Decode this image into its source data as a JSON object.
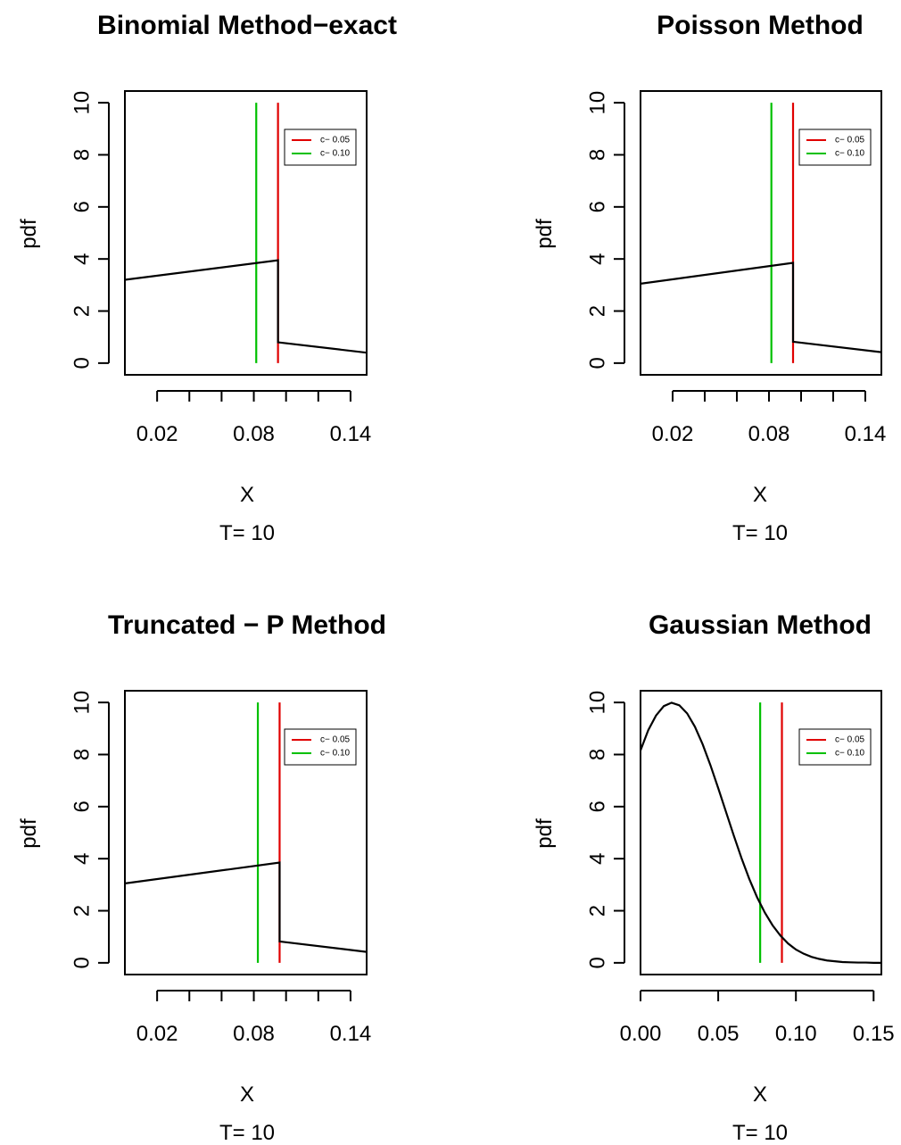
{
  "chart_data": [
    {
      "type": "line",
      "title": "Binomial Method−exact",
      "xlabel": "X",
      "sublabel": "T= 10",
      "ylabel": "pdf",
      "xlim": [
        0.0,
        0.15
      ],
      "ylim": [
        0,
        10
      ],
      "x_ticks": [
        0.02,
        0.04,
        0.06,
        0.08,
        0.1,
        0.12,
        0.14
      ],
      "x_tick_labels": [
        "0.02",
        "0.08",
        "0.14"
      ],
      "y_ticks": [
        0,
        2,
        4,
        6,
        8,
        10
      ],
      "y_tick_labels": [
        "0",
        "2",
        "4",
        "6",
        "8",
        "10"
      ],
      "series": [
        {
          "points": [
            [
              0.0,
              3.2
            ],
            [
              0.095,
              3.95
            ],
            [
              0.095,
              0.8
            ],
            [
              0.15,
              0.4
            ]
          ]
        }
      ],
      "vlines": [
        {
          "x": 0.0815,
          "color": "#00C000",
          "y_top": 10
        },
        {
          "x": 0.095,
          "color": "#E00000",
          "y_top": 10
        }
      ],
      "legend": {
        "position": "top-right",
        "entries": [
          {
            "label": "c− 0.05",
            "color": "#E00000"
          },
          {
            "label": "c− 0.10",
            "color": "#00C000"
          }
        ]
      }
    },
    {
      "type": "line",
      "title": "Poisson Method",
      "xlabel": "X",
      "sublabel": "T= 10",
      "ylabel": "pdf",
      "xlim": [
        0.0,
        0.15
      ],
      "ylim": [
        0,
        10
      ],
      "x_ticks": [
        0.02,
        0.04,
        0.06,
        0.08,
        0.1,
        0.12,
        0.14
      ],
      "x_tick_labels": [
        "0.02",
        "0.08",
        "0.14"
      ],
      "y_ticks": [
        0,
        2,
        4,
        6,
        8,
        10
      ],
      "y_tick_labels": [
        "0",
        "2",
        "4",
        "6",
        "8",
        "10"
      ],
      "series": [
        {
          "points": [
            [
              0.0,
              3.05
            ],
            [
              0.095,
              3.85
            ],
            [
              0.095,
              0.82
            ],
            [
              0.15,
              0.42
            ]
          ]
        }
      ],
      "vlines": [
        {
          "x": 0.0815,
          "color": "#00C000",
          "y_top": 10
        },
        {
          "x": 0.095,
          "color": "#E00000",
          "y_top": 10
        }
      ],
      "legend": {
        "position": "top-right",
        "entries": [
          {
            "label": "c− 0.05",
            "color": "#E00000"
          },
          {
            "label": "c− 0.10",
            "color": "#00C000"
          }
        ]
      }
    },
    {
      "type": "line",
      "title": "Truncated − P Method",
      "xlabel": "X",
      "sublabel": "T= 10",
      "ylabel": "pdf",
      "xlim": [
        0.0,
        0.15
      ],
      "ylim": [
        0,
        10
      ],
      "x_ticks": [
        0.02,
        0.04,
        0.06,
        0.08,
        0.1,
        0.12,
        0.14
      ],
      "x_tick_labels": [
        "0.02",
        "0.08",
        "0.14"
      ],
      "y_ticks": [
        0,
        2,
        4,
        6,
        8,
        10
      ],
      "y_tick_labels": [
        "0",
        "2",
        "4",
        "6",
        "8",
        "10"
      ],
      "series": [
        {
          "points": [
            [
              0.0,
              3.05
            ],
            [
              0.096,
              3.85
            ],
            [
              0.096,
              0.82
            ],
            [
              0.15,
              0.42
            ]
          ]
        }
      ],
      "vlines": [
        {
          "x": 0.0825,
          "color": "#00C000",
          "y_top": 10
        },
        {
          "x": 0.096,
          "color": "#E00000",
          "y_top": 10
        }
      ],
      "legend": {
        "position": "top-right",
        "entries": [
          {
            "label": "c− 0.05",
            "color": "#E00000"
          },
          {
            "label": "c− 0.10",
            "color": "#00C000"
          }
        ]
      }
    },
    {
      "type": "line",
      "title": "Gaussian Method",
      "xlabel": "X",
      "sublabel": "T= 10",
      "ylabel": "pdf",
      "xlim": [
        0.0,
        0.155
      ],
      "ylim": [
        0,
        10
      ],
      "x_ticks": [
        0.0,
        0.05,
        0.1,
        0.15
      ],
      "x_tick_labels": [
        "0.00",
        "0.05",
        "0.10",
        "0.15"
      ],
      "y_ticks": [
        0,
        2,
        4,
        6,
        8,
        10
      ],
      "y_tick_labels": [
        "0",
        "2",
        "4",
        "6",
        "8",
        "10"
      ],
      "series": [
        {
          "points": [
            [
              0.0,
              8.16
            ],
            [
              0.005,
              8.94
            ],
            [
              0.01,
              9.5
            ],
            [
              0.015,
              9.86
            ],
            [
              0.02,
              9.99
            ],
            [
              0.025,
              9.89
            ],
            [
              0.03,
              9.58
            ],
            [
              0.035,
              9.07
            ],
            [
              0.04,
              8.39
            ],
            [
              0.045,
              7.59
            ],
            [
              0.05,
              6.71
            ],
            [
              0.055,
              5.8
            ],
            [
              0.06,
              4.89
            ],
            [
              0.065,
              4.02
            ],
            [
              0.07,
              3.22
            ],
            [
              0.075,
              2.52
            ],
            [
              0.08,
              1.93
            ],
            [
              0.085,
              1.44
            ],
            [
              0.09,
              1.05
            ],
            [
              0.095,
              0.74
            ],
            [
              0.1,
              0.51
            ],
            [
              0.105,
              0.35
            ],
            [
              0.11,
              0.23
            ],
            [
              0.115,
              0.15
            ],
            [
              0.12,
              0.09
            ],
            [
              0.125,
              0.06
            ],
            [
              0.13,
              0.03
            ],
            [
              0.135,
              0.02
            ],
            [
              0.14,
              0.01
            ],
            [
              0.145,
              0.01
            ],
            [
              0.15,
              0.0
            ],
            [
              0.155,
              0.0
            ]
          ]
        }
      ],
      "vlines": [
        {
          "x": 0.077,
          "color": "#00C000",
          "y_top": 10
        },
        {
          "x": 0.091,
          "color": "#E00000",
          "y_top": 10
        }
      ],
      "legend": {
        "position": "top-right",
        "entries": [
          {
            "label": "c− 0.05",
            "color": "#E00000"
          },
          {
            "label": "c− 0.10",
            "color": "#00C000"
          }
        ]
      }
    }
  ]
}
